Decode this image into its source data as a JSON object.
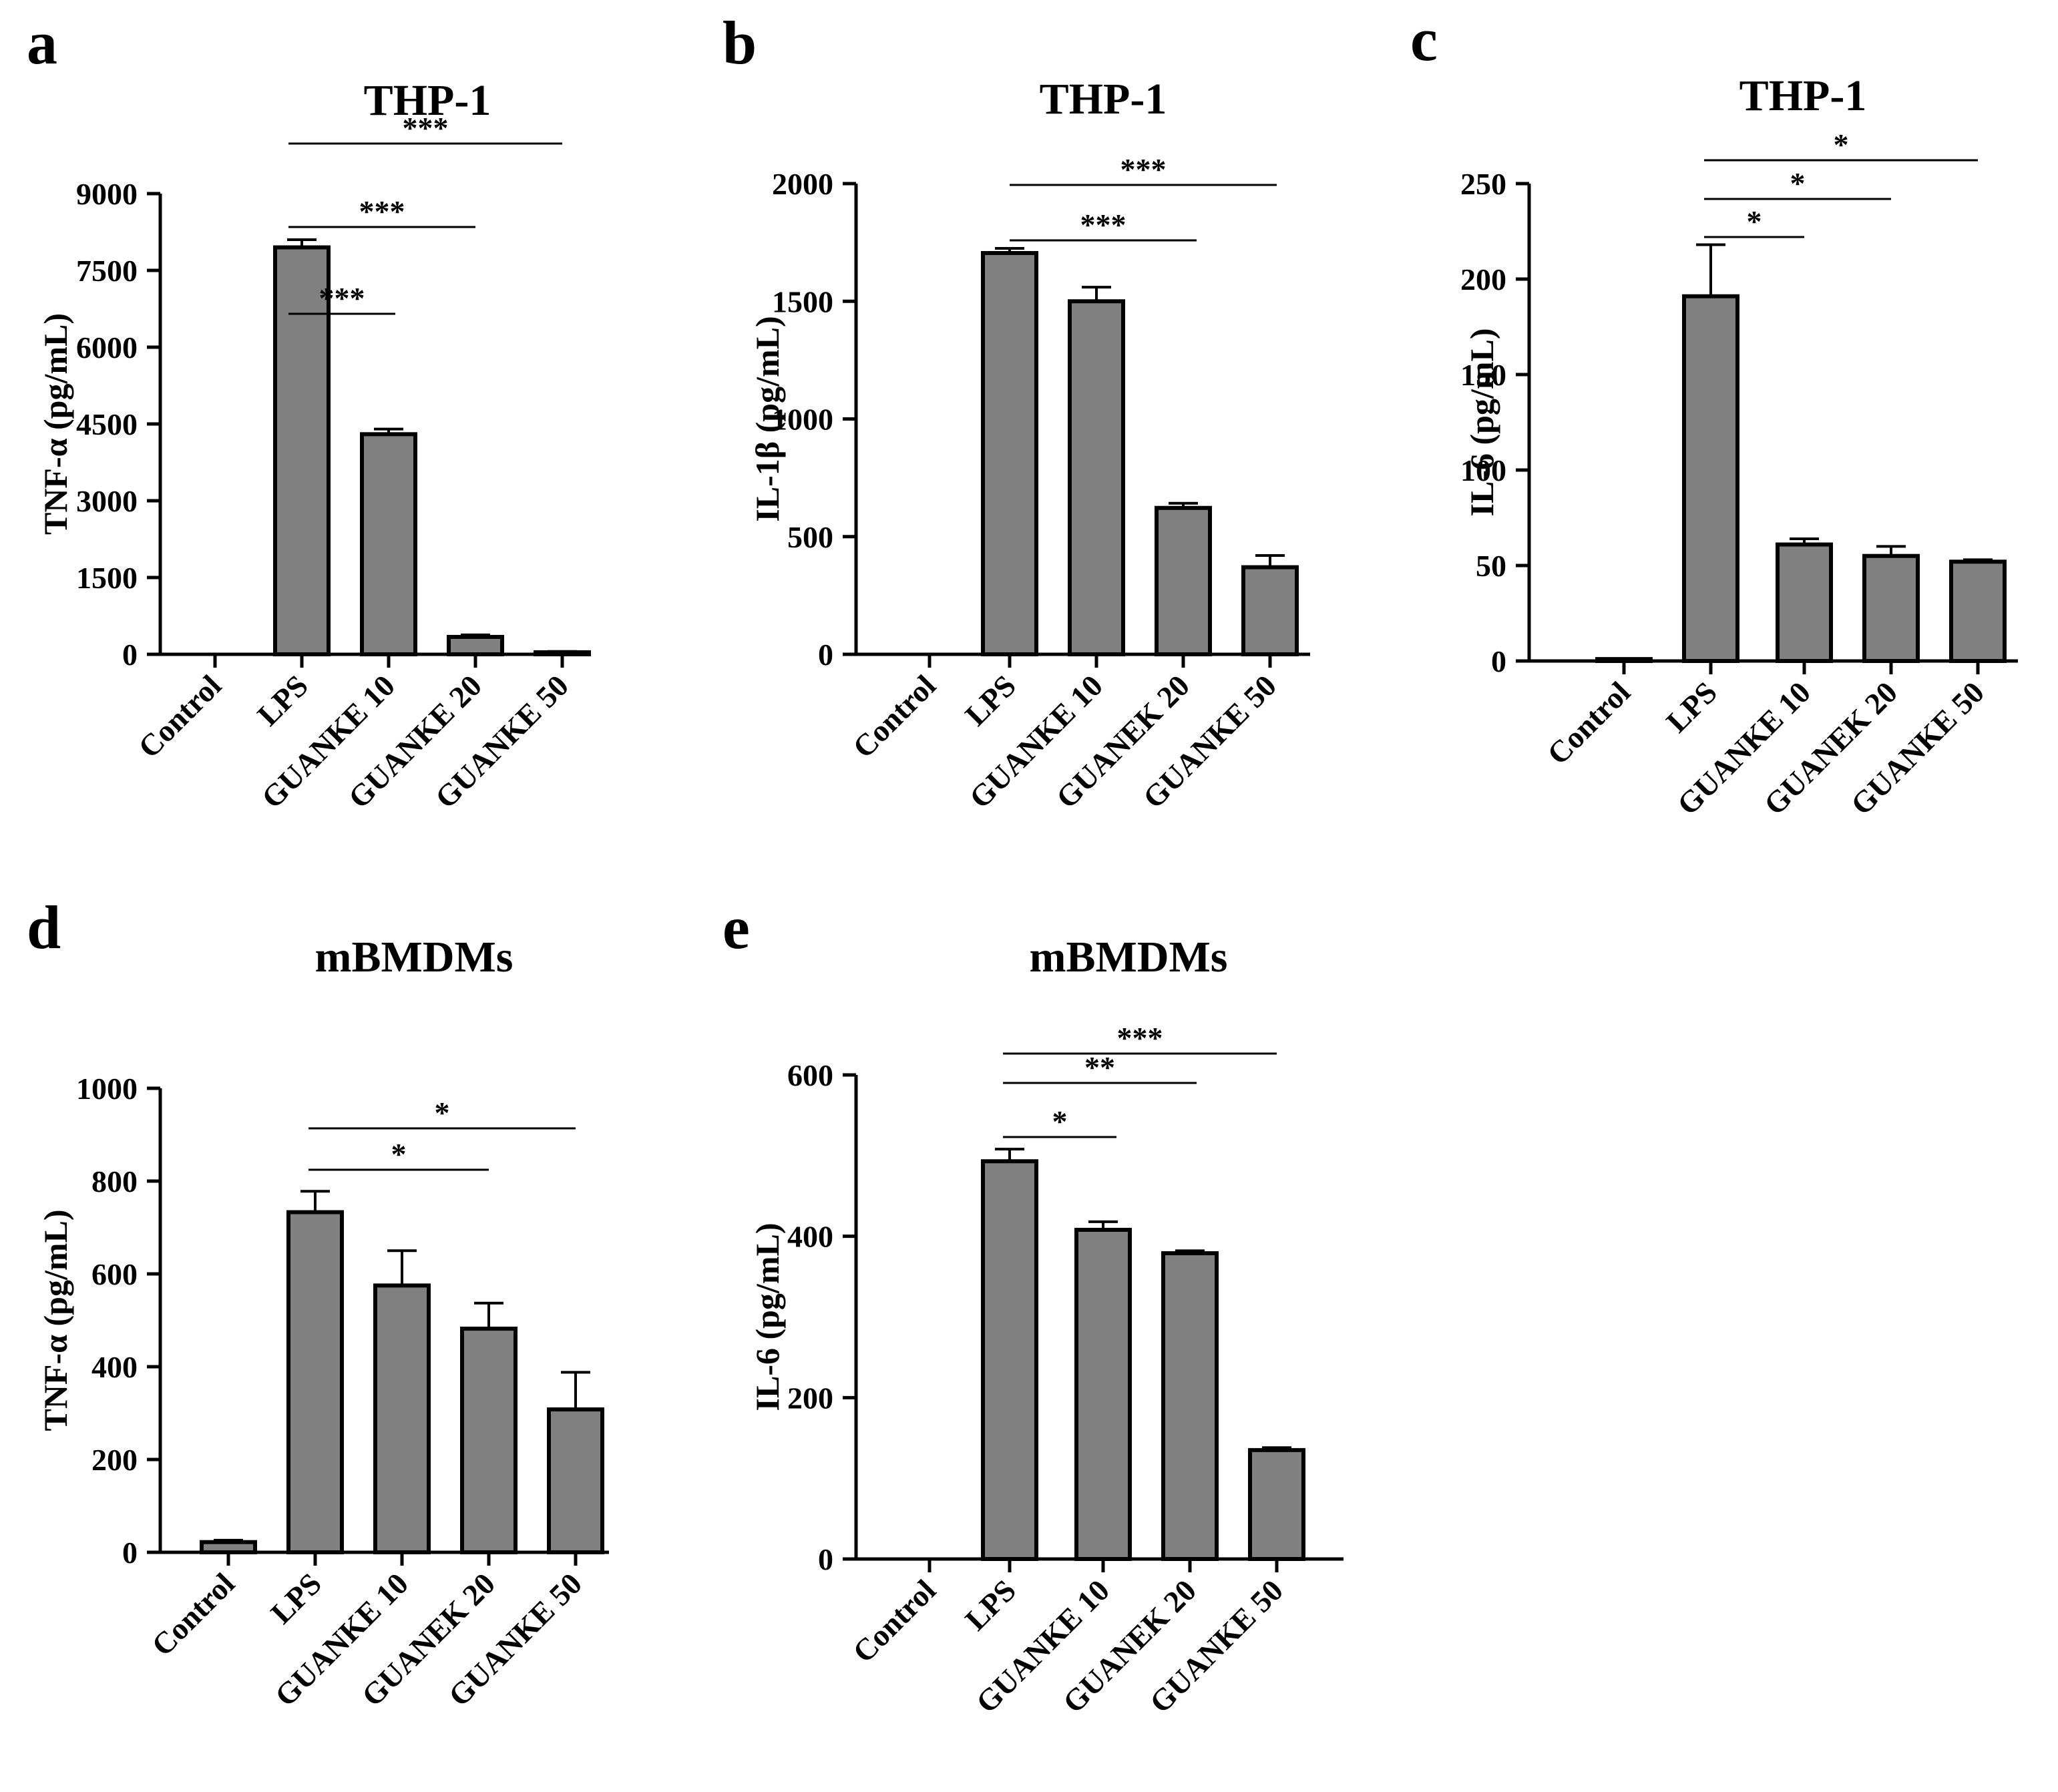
{
  "chart_data": [
    {
      "panel": "a",
      "type": "bar",
      "title": "THP-1",
      "ylabel": "TNF-α (pg/mL)",
      "xlabel": "",
      "categories": [
        "Control",
        "LPS",
        "GUANKE 10",
        "GUANKE 20",
        "GUANKE 50"
      ],
      "values": [
        0,
        7950,
        4300,
        340,
        40
      ],
      "errors": [
        0,
        150,
        100,
        40,
        15
      ],
      "ylim": [
        0,
        9000
      ],
      "yticks": [
        0,
        1500,
        3000,
        4500,
        6000,
        7500,
        9000
      ],
      "grid": false,
      "significance": [
        {
          "from": 1,
          "to": 2,
          "label": "***"
        },
        {
          "from": 1,
          "to": 3,
          "label": "***"
        },
        {
          "from": 1,
          "to": 4,
          "label": "***"
        }
      ]
    },
    {
      "panel": "b",
      "type": "bar",
      "title": "THP-1",
      "ylabel": "IL-1β (pg/mL)",
      "xlabel": "",
      "categories": [
        "Control",
        "LPS",
        "GUANKE 10",
        "GUANEK 20",
        "GUANKE 50"
      ],
      "values": [
        0,
        1705,
        1500,
        622,
        370
      ],
      "errors": [
        0,
        20,
        60,
        20,
        50
      ],
      "ylim": [
        0,
        2000
      ],
      "yticks": [
        0,
        500,
        1000,
        1500,
        2000
      ],
      "grid": false,
      "significance": [
        {
          "from": 1,
          "to": 3,
          "label": "***"
        },
        {
          "from": 1,
          "to": 4,
          "label": "***"
        }
      ]
    },
    {
      "panel": "c",
      "type": "bar",
      "title": "THP-1",
      "ylabel": "IL-6 (pg/mL)",
      "xlabel": "",
      "categories": [
        "Control",
        "LPS",
        "GUANKE 10",
        "GUANEK 20",
        "GUANKE 50"
      ],
      "values": [
        1,
        191,
        61,
        55,
        52
      ],
      "errors": [
        0,
        27,
        3,
        5,
        1
      ],
      "ylim": [
        0,
        250
      ],
      "yticks": [
        0,
        50,
        100,
        150,
        200,
        250
      ],
      "grid": false,
      "significance": [
        {
          "from": 1,
          "to": 2,
          "label": "*"
        },
        {
          "from": 1,
          "to": 3,
          "label": "*"
        },
        {
          "from": 1,
          "to": 4,
          "label": "*"
        }
      ]
    },
    {
      "panel": "d",
      "type": "bar",
      "title": "mBMDMs",
      "ylabel": "TNF-α (pg/mL)",
      "xlabel": "",
      "categories": [
        "Control",
        "LPS",
        "GUANKE 10",
        "GUANEK 20",
        "GUANKE 50"
      ],
      "values": [
        22,
        733,
        575,
        482,
        308
      ],
      "errors": [
        4,
        45,
        75,
        55,
        80
      ],
      "ylim": [
        0,
        1000
      ],
      "yticks": [
        0,
        200,
        400,
        600,
        800,
        1000
      ],
      "grid": false,
      "significance": [
        {
          "from": 1,
          "to": 3,
          "label": "*"
        },
        {
          "from": 1,
          "to": 4,
          "label": "*"
        }
      ]
    },
    {
      "panel": "e",
      "type": "bar",
      "title": "mBMDMs",
      "ylabel": "IL-6 (pg/mL)",
      "xlabel": "",
      "categories": [
        "Control",
        "LPS",
        "GUANKE 10",
        "GUANEK 20",
        "GUANKE 50"
      ],
      "values": [
        0,
        493,
        408,
        379,
        135
      ],
      "errors": [
        0,
        15,
        10,
        3,
        3
      ],
      "ylim": [
        0,
        600
      ],
      "yticks": [
        0,
        200,
        400,
        600
      ],
      "grid": false,
      "significance": [
        {
          "from": 1,
          "to": 2,
          "label": "*"
        },
        {
          "from": 1,
          "to": 3,
          "label": "**"
        },
        {
          "from": 1,
          "to": 4,
          "label": "***"
        }
      ]
    }
  ],
  "colors": {
    "bar_fill": "#808080",
    "bar_stroke": "#000000",
    "axis": "#000000"
  }
}
